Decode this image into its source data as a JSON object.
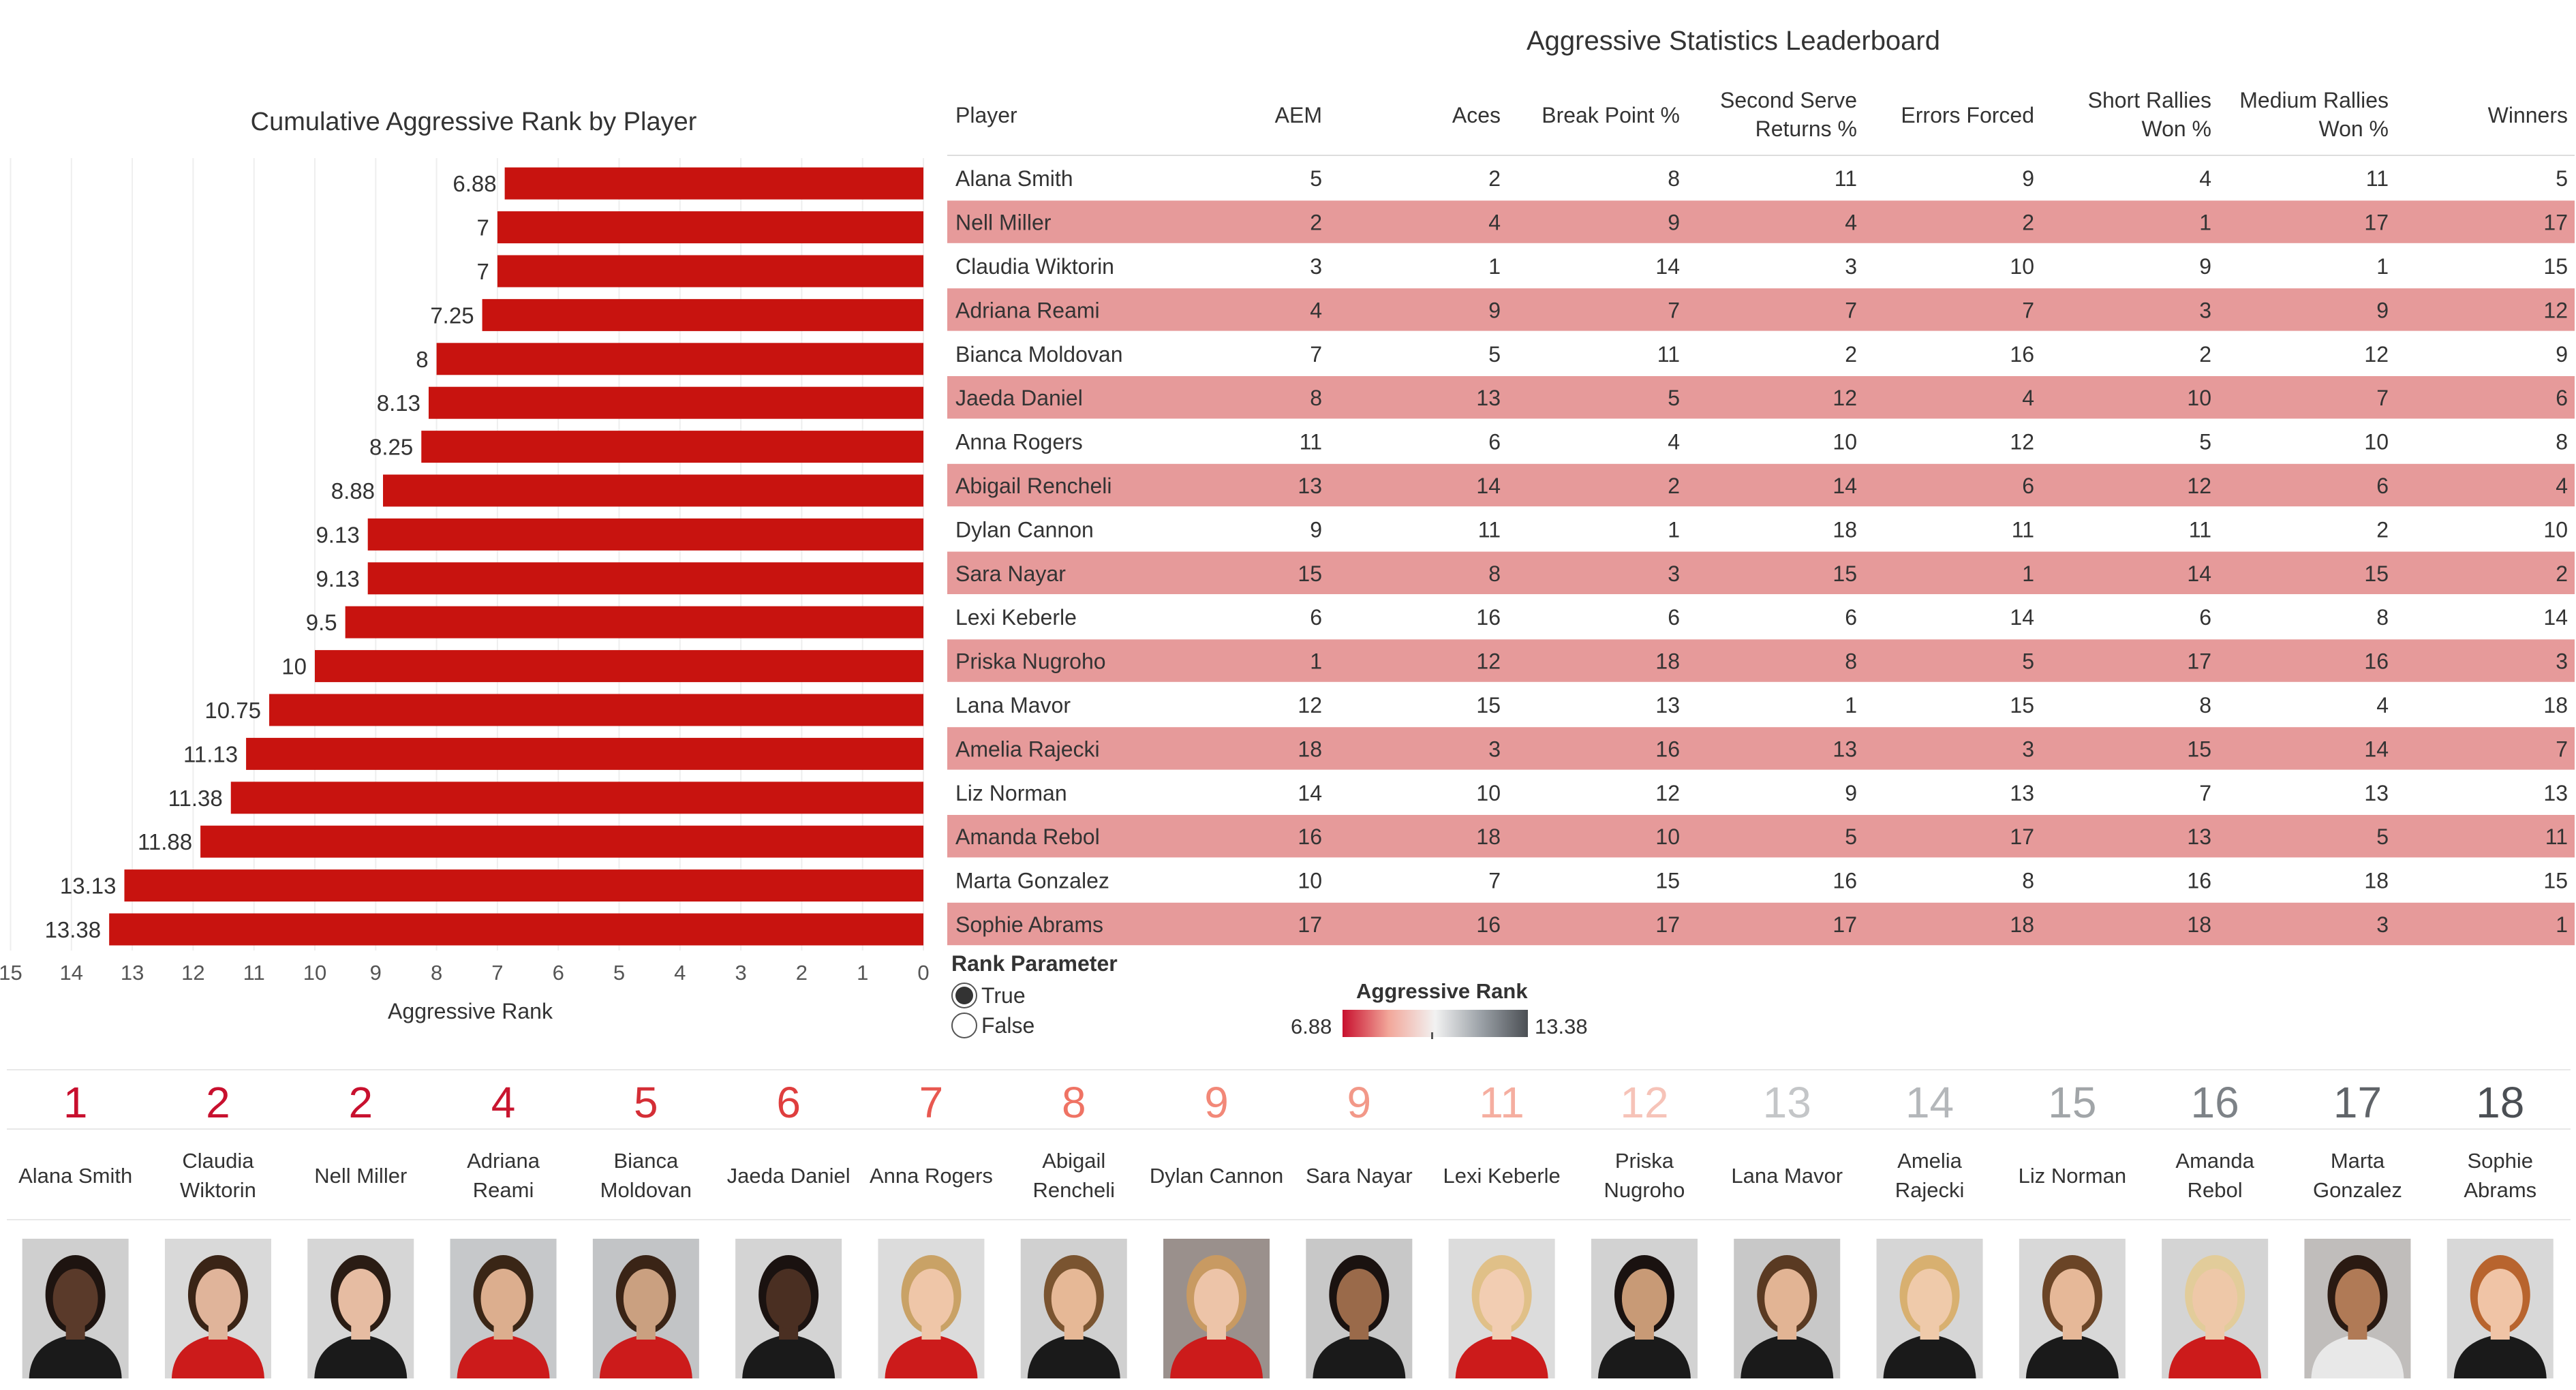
{
  "chart_title": "Cumulative Aggressive Rank by Player",
  "table_title": "Aggressive Statistics Leaderboard",
  "chart_data": [
    {
      "type": "bar",
      "title": "Cumulative Aggressive Rank by Player",
      "xlabel": "Aggressive Rank",
      "xlim": [
        0,
        15
      ],
      "x_reversed": true,
      "x_ticks": [
        "15",
        "14",
        "13",
        "12",
        "11",
        "10",
        "9",
        "8",
        "7",
        "6",
        "5",
        "4",
        "3",
        "2",
        "1",
        "0"
      ],
      "categories": [
        "Alana Smith",
        "Nell Miller",
        "Claudia Wiktorin",
        "Adriana Reami",
        "Bianca Moldovan",
        "Jaeda Daniel",
        "Anna Rogers",
        "Abigail Rencheli",
        "Dylan Cannon",
        "Sara Nayar",
        "Lexi Keberle",
        "Priska Nugroho",
        "Lana Mavor",
        "Amelia Rajecki",
        "Liz Norman",
        "Amanda Rebol",
        "Marta Gonzalez",
        "Sophie Abrams"
      ],
      "values": [
        6.88,
        7,
        7,
        7.25,
        8,
        8.13,
        8.25,
        8.88,
        9.13,
        9.13,
        9.5,
        10,
        10.75,
        11.13,
        11.38,
        11.88,
        13.13,
        13.38
      ],
      "value_labels": [
        "6.88",
        "7",
        "7",
        "7.25",
        "8",
        "8.13",
        "8.25",
        "8.88",
        "9.13",
        "9.13",
        "9.5",
        "10",
        "10.75",
        "11.13",
        "11.38",
        "11.88",
        "13.13",
        "13.38"
      ],
      "bar_color": "#c8130f",
      "grid": true
    },
    {
      "type": "table",
      "title": "Aggressive Statistics Leaderboard",
      "columns": [
        [
          "Player"
        ],
        [
          "AEM"
        ],
        [
          "Aces"
        ],
        [
          "Break Point %"
        ],
        [
          "Second Serve",
          "Returns %"
        ],
        [
          "Errors Forced"
        ],
        [
          "Short Rallies",
          "Won %"
        ],
        [
          "Medium Rallies",
          "Won %"
        ],
        [
          "Winners"
        ]
      ],
      "rows": [
        [
          "Alana Smith",
          "5",
          "2",
          "8",
          "11",
          "9",
          "4",
          "11",
          "5"
        ],
        [
          "Nell Miller",
          "2",
          "4",
          "9",
          "4",
          "2",
          "1",
          "17",
          "17"
        ],
        [
          "Claudia Wiktorin",
          "3",
          "1",
          "14",
          "3",
          "10",
          "9",
          "1",
          "15"
        ],
        [
          "Adriana Reami",
          "4",
          "9",
          "7",
          "7",
          "7",
          "3",
          "9",
          "12"
        ],
        [
          "Bianca Moldovan",
          "7",
          "5",
          "11",
          "2",
          "16",
          "2",
          "12",
          "9"
        ],
        [
          "Jaeda Daniel",
          "8",
          "13",
          "5",
          "12",
          "4",
          "10",
          "7",
          "6"
        ],
        [
          "Anna Rogers",
          "11",
          "6",
          "4",
          "10",
          "12",
          "5",
          "10",
          "8"
        ],
        [
          "Abigail Rencheli",
          "13",
          "14",
          "2",
          "14",
          "6",
          "12",
          "6",
          "4"
        ],
        [
          "Dylan Cannon",
          "9",
          "11",
          "1",
          "18",
          "11",
          "11",
          "2",
          "10"
        ],
        [
          "Sara Nayar",
          "15",
          "8",
          "3",
          "15",
          "1",
          "14",
          "15",
          "2"
        ],
        [
          "Lexi Keberle",
          "6",
          "16",
          "6",
          "6",
          "14",
          "6",
          "8",
          "14"
        ],
        [
          "Priska Nugroho",
          "1",
          "12",
          "18",
          "8",
          "5",
          "17",
          "16",
          "3"
        ],
        [
          "Lana Mavor",
          "12",
          "15",
          "13",
          "1",
          "15",
          "8",
          "4",
          "18"
        ],
        [
          "Amelia Rajecki",
          "18",
          "3",
          "16",
          "13",
          "3",
          "15",
          "14",
          "7"
        ],
        [
          "Liz Norman",
          "14",
          "10",
          "12",
          "9",
          "13",
          "7",
          "13",
          "13"
        ],
        [
          "Amanda Rebol",
          "16",
          "18",
          "10",
          "5",
          "17",
          "13",
          "5",
          "11"
        ],
        [
          "Marta Gonzalez",
          "10",
          "7",
          "15",
          "16",
          "8",
          "16",
          "18",
          "15"
        ],
        [
          "Sophie Abrams",
          "17",
          "16",
          "17",
          "17",
          "18",
          "18",
          "3",
          "1"
        ]
      ],
      "band_color": "#e69a9a"
    }
  ],
  "parameter": {
    "title": "Rank Parameter",
    "options": [
      {
        "label": "True",
        "selected": true
      },
      {
        "label": "False",
        "selected": false
      }
    ]
  },
  "legend": {
    "title": "Aggressive Rank",
    "min_label": "6.88",
    "max_label": "13.38",
    "colors": [
      "#c8102e",
      "#f2a79a",
      "#f2f2f2",
      "#9aa0a6",
      "#4b4f54"
    ]
  },
  "players_strip": {
    "ranks": [
      "1",
      "2",
      "2",
      "4",
      "5",
      "6",
      "7",
      "8",
      "9",
      "9",
      "11",
      "12",
      "13",
      "14",
      "15",
      "16",
      "17",
      "18"
    ],
    "rank_colors": [
      "#c8102e",
      "#c8102e",
      "#c8102e",
      "#c9162f",
      "#d42e36",
      "#df3e3e",
      "#e85850",
      "#ef7364",
      "#f28878",
      "#f29888",
      "#f5aea0",
      "#f6c3b8",
      "#c4c6c8",
      "#b4b7ba",
      "#a1a5a8",
      "#7d8287",
      "#606469",
      "#4b4f54"
    ],
    "names": [
      [
        "Alana Smith"
      ],
      [
        "Claudia",
        "Wiktorin"
      ],
      [
        "Nell Miller"
      ],
      [
        "Adriana",
        "Reami"
      ],
      [
        "Bianca",
        "Moldovan"
      ],
      [
        "Jaeda Daniel"
      ],
      [
        "Anna Rogers"
      ],
      [
        "Abigail",
        "Rencheli"
      ],
      [
        "Dylan Cannon"
      ],
      [
        "Sara Nayar"
      ],
      [
        "Lexi Keberle"
      ],
      [
        "Priska",
        "Nugroho"
      ],
      [
        "Lana Mavor"
      ],
      [
        "Amelia",
        "Rajecki"
      ],
      [
        "Liz Norman"
      ],
      [
        "Amanda",
        "Rebol"
      ],
      [
        "Marta",
        "Gonzalez"
      ],
      [
        "Sophie",
        "Abrams"
      ]
    ],
    "photo_bg": [
      "#cfcfcf",
      "#d9d9d9",
      "#d6d6d6",
      "#c6c8ca",
      "#c2c4c6",
      "#d4d4d4",
      "#dcdcdc",
      "#d0d0d0",
      "#9a908c",
      "#c8c8c8",
      "#dcdcdc",
      "#d2d2d2",
      "#c8c8c8",
      "#d6d6d6",
      "#d8d8d8",
      "#d4d4d4",
      "#c0bdbb",
      "#d8d8d8"
    ],
    "shirt": [
      "#1a1a1a",
      "#cc1b1b",
      "#1a1a1a",
      "#cc1b1b",
      "#cc1b1b",
      "#1a1a1a",
      "#cc1b1b",
      "#1a1a1a",
      "#cc1b1b",
      "#1a1a1a",
      "#cc1b1b",
      "#1a1a1a",
      "#1a1a1a",
      "#1a1a1a",
      "#1a1a1a",
      "#cc1b1b",
      "#e8e8e8",
      "#1a1a1a"
    ],
    "skin": [
      "#5a3a2a",
      "#e0b49a",
      "#e6bca2",
      "#dcae8e",
      "#caa080",
      "#4a2f22",
      "#efc6a8",
      "#e6b896",
      "#edc4a8",
      "#9a6a4a",
      "#f2cdb2",
      "#c89a76",
      "#e2b494",
      "#efcaaa",
      "#e6b898",
      "#eec8a8",
      "#b07a56",
      "#f0c4a6"
    ],
    "hair": [
      "#1e1410",
      "#3a2416",
      "#2a1c14",
      "#3a2616",
      "#3a2416",
      "#1a1210",
      "#c9a266",
      "#7a5430",
      "#c89a62",
      "#1a1210",
      "#e0c088",
      "#1a1210",
      "#5a3a22",
      "#d8b070",
      "#6a4426",
      "#e2cc9a",
      "#2a1a12",
      "#b8642e"
    ]
  }
}
